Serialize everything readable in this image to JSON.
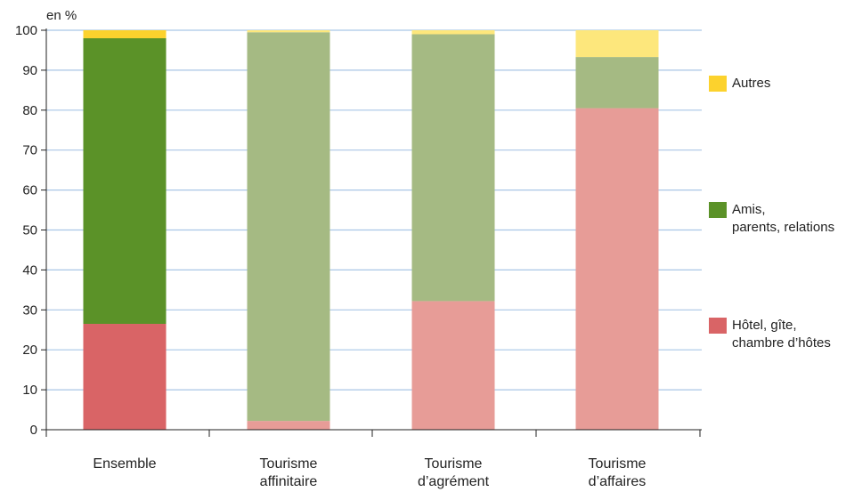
{
  "chart_data": {
    "type": "bar",
    "stacked": true,
    "title": "",
    "ylabel": "en %",
    "xlabel": "",
    "ylim": [
      0,
      100
    ],
    "yticks": [
      0,
      10,
      20,
      30,
      40,
      50,
      60,
      70,
      80,
      90,
      100
    ],
    "grid": true,
    "legend_position": "right",
    "categories": [
      [
        "Ensemble"
      ],
      [
        "Tourisme",
        "affinitaire"
      ],
      [
        "Tourisme",
        "d’agrément"
      ],
      [
        "Tourisme",
        "d’affaires"
      ]
    ],
    "series": [
      {
        "name": "Hôtel, gîte, chambre d’hôtes",
        "legend_lines": [
          "Hôtel, gîte,",
          "chambre d’hôtes"
        ],
        "values": [
          26.5,
          2.2,
          32.2,
          80.5
        ],
        "colors": [
          "#d96466",
          "#e79c97",
          "#e79c97",
          "#e79c97"
        ]
      },
      {
        "name": "Amis, parents, relations",
        "legend_lines": [
          "Amis,",
          "parents, relations"
        ],
        "values": [
          71.5,
          97.3,
          66.8,
          12.8
        ],
        "colors": [
          "#5b9228",
          "#a5ba83",
          "#a5ba83",
          "#a5ba83"
        ]
      },
      {
        "name": "Autres",
        "legend_lines": [
          "Autres"
        ],
        "values": [
          2.0,
          0.5,
          1.0,
          6.7
        ],
        "colors": [
          "#fcd22d",
          "#fde77c",
          "#fde77c",
          "#fde77c"
        ]
      }
    ],
    "legend_colors": [
      "#d96466",
      "#5b9228",
      "#fcd22d"
    ],
    "gridline_color": "#a9c6e6"
  }
}
